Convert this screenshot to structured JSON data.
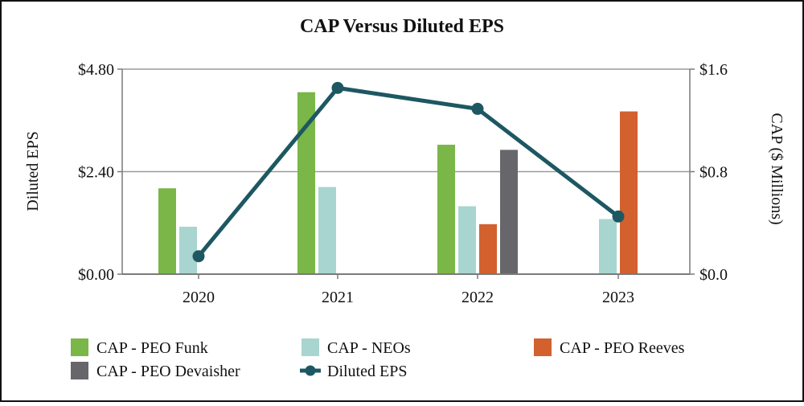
{
  "chart_data": {
    "type": "bar+line",
    "title": "CAP Versus Diluted EPS",
    "categories": [
      "2020",
      "2021",
      "2022",
      "2023"
    ],
    "y_left": {
      "label": "Diluted EPS",
      "range": [
        0,
        4.8
      ],
      "ticks": [
        {
          "value": 0,
          "label": "$0.00"
        },
        {
          "value": 2.4,
          "label": "$2.40"
        },
        {
          "value": 4.8,
          "label": "$4.80"
        }
      ]
    },
    "y_right": {
      "label": "CAP ($ Millions)",
      "range": [
        0,
        1.6
      ],
      "ticks": [
        {
          "value": 0,
          "label": "$0.0"
        },
        {
          "value": 0.8,
          "label": "$0.8"
        },
        {
          "value": 1.6,
          "label": "$1.6"
        }
      ]
    },
    "bar_series": [
      {
        "name": "CAP - PEO Funk",
        "color": "#7ab648",
        "values": [
          0.67,
          1.42,
          1.01,
          null
        ]
      },
      {
        "name": "CAP - NEOs",
        "color": "#a8d5cf",
        "values": [
          0.37,
          0.68,
          0.53,
          0.43
        ]
      },
      {
        "name": "CAP - PEO Reeves",
        "color": "#d2612e",
        "values": [
          null,
          null,
          0.39,
          1.27
        ]
      },
      {
        "name": "CAP - PEO Devaisher",
        "color": "#67676b",
        "values": [
          null,
          null,
          0.97,
          null
        ]
      }
    ],
    "line_series": {
      "name": "Diluted EPS",
      "color": "#1d5862",
      "values": [
        0.42,
        4.36,
        3.87,
        1.35
      ]
    },
    "grid": true,
    "legend_position": "bottom"
  }
}
